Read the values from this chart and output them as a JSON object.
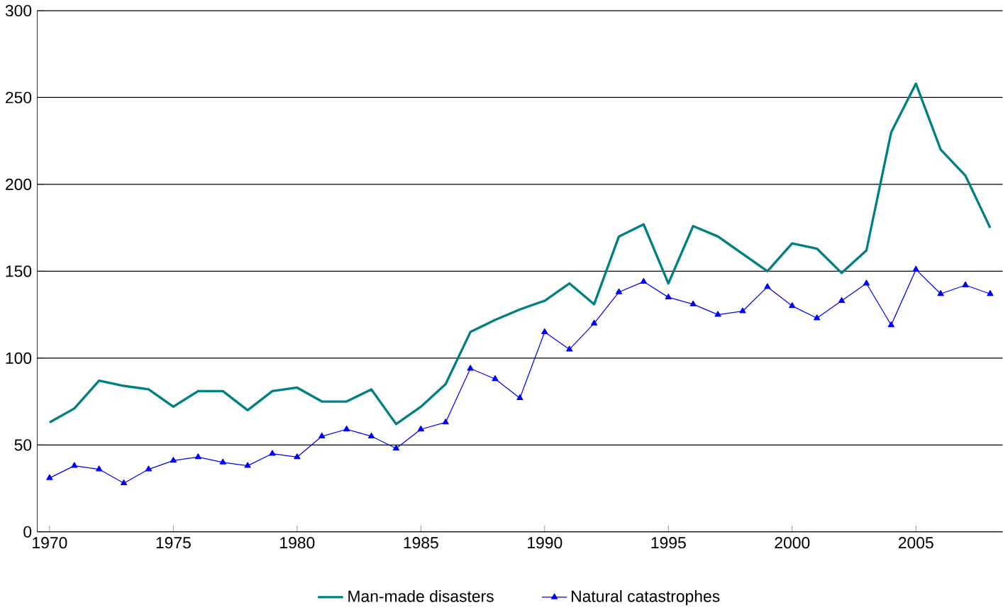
{
  "chart_data": {
    "type": "line",
    "x": [
      1970,
      1971,
      1972,
      1973,
      1974,
      1975,
      1976,
      1977,
      1978,
      1979,
      1980,
      1981,
      1982,
      1983,
      1984,
      1985,
      1986,
      1987,
      1988,
      1989,
      1990,
      1991,
      1992,
      1993,
      1994,
      1995,
      1996,
      1997,
      1998,
      1999,
      2000,
      2001,
      2002,
      2003,
      2004,
      2005,
      2006,
      2007,
      2008
    ],
    "series": [
      {
        "name": "Man-made disasters",
        "color": "#008080",
        "marker": "none",
        "values": [
          63,
          71,
          87,
          84,
          82,
          72,
          81,
          81,
          70,
          81,
          83,
          75,
          75,
          82,
          62,
          72,
          85,
          115,
          122,
          128,
          133,
          143,
          131,
          170,
          177,
          143,
          176,
          170,
          160,
          150,
          166,
          163,
          149,
          162,
          230,
          258,
          220,
          205,
          175
        ]
      },
      {
        "name": "Natural catastrophes",
        "color": "#0000ff",
        "marker": "triangle",
        "values": [
          31,
          38,
          36,
          28,
          36,
          41,
          43,
          40,
          38,
          45,
          43,
          55,
          59,
          55,
          48,
          59,
          63,
          94,
          88,
          77,
          115,
          105,
          120,
          138,
          144,
          135,
          131,
          125,
          127,
          141,
          130,
          123,
          133,
          143,
          119,
          151,
          137,
          142,
          137
        ]
      }
    ],
    "xlim": [
      1969.5,
      2008.5
    ],
    "xticks": [
      1970,
      1975,
      1980,
      1985,
      1990,
      1995,
      2000,
      2005
    ],
    "ylim": [
      0,
      300
    ],
    "yticks": [
      0,
      50,
      100,
      150,
      200,
      250,
      300
    ],
    "grid": "y",
    "legend": "bottom"
  }
}
